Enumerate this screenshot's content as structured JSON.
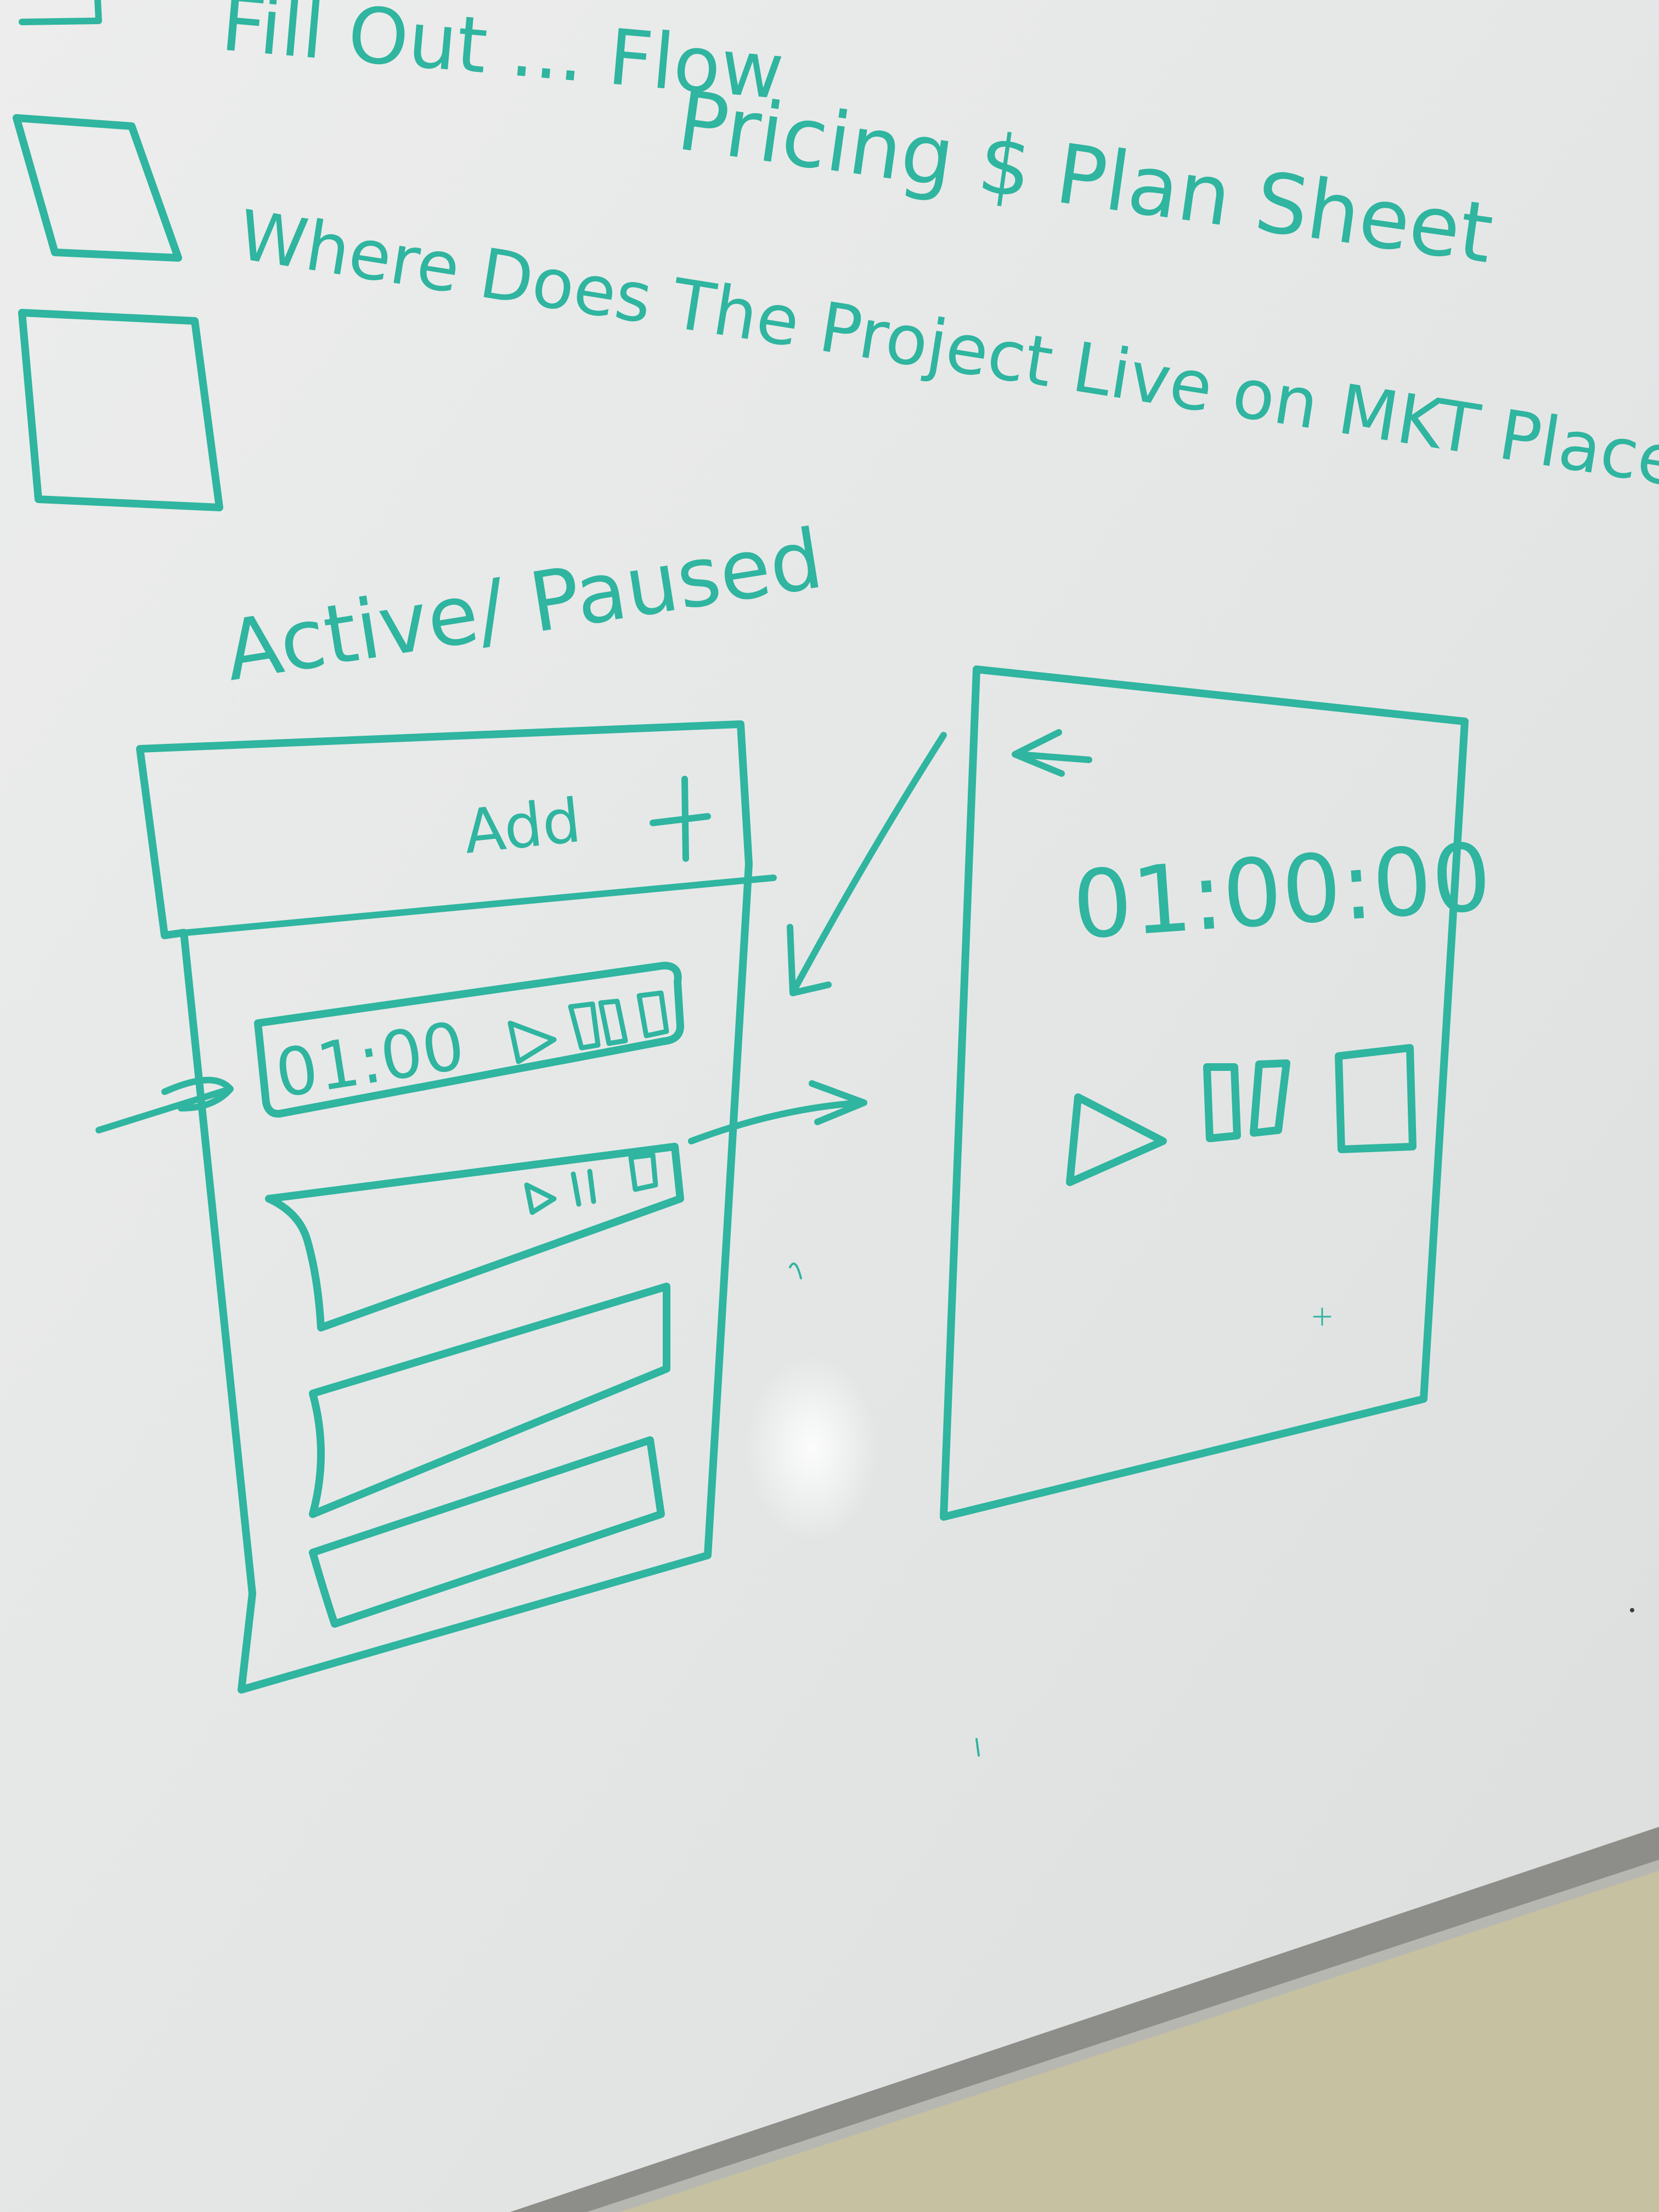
{
  "colors": {
    "marker": "#2fb5a0",
    "board": "#e9eaea",
    "tray": "#8a8a86",
    "wall": "#c9c5a7"
  },
  "notes": {
    "line1": "Fill Out ... Flow",
    "line2": "Pricing $ Plan Sheet",
    "line3": "Where Does The Project Live on MKT Place"
  },
  "list_screen": {
    "heading": "Active/ Paused",
    "add_label": "Add",
    "add_icon": "plus-icon",
    "active_row": {
      "time": "01:00",
      "icons": [
        "play-icon",
        "pause-icon",
        "stop-icon"
      ]
    },
    "row2_icons": [
      "play-icon",
      "pause-icon",
      "stop-icon"
    ]
  },
  "detail_screen": {
    "back_icon": "back-arrow-icon",
    "timer": "01:00:00",
    "controls": [
      "play-icon",
      "pause-icon",
      "stop-icon"
    ]
  }
}
